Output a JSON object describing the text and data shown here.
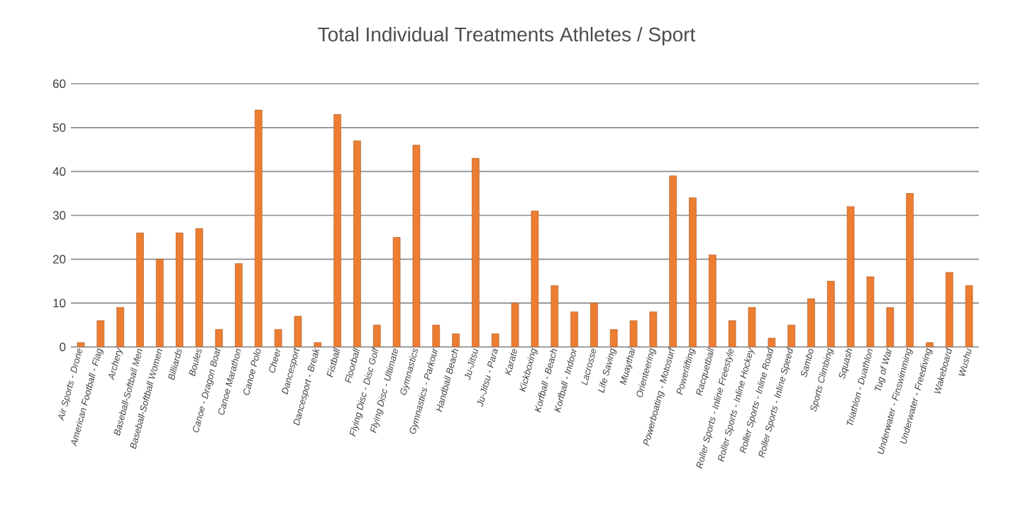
{
  "chart_data": {
    "type": "bar",
    "title": "Total Individual Treatments Athletes / Sport",
    "categories": [
      "Air Sports - Drone",
      "American Football - Flag",
      "Archery",
      "Baseball-Softball Men",
      "Baseball-Softball Women",
      "Billiards",
      "Boules",
      "Canoe - Dragon Boat",
      "Canoe Marathon",
      "Canoe Polo",
      "Cheer",
      "Dancesport",
      "Dancesport - Break",
      "Fistball",
      "Floorball",
      "Flying Disc - Disc Golf",
      "Flying Disc - Ultimate",
      "Gymnastics",
      "Gymnastics - Parkour",
      "Handball Beach",
      "Ju-Jitsu",
      "Ju-Jitsu - Para",
      "Karate",
      "Kickboxing",
      "Korfball - Beach",
      "Korfball - Indoor",
      "Lacrosse",
      "Life Saving",
      "Muaythai",
      "Orienteering",
      "Powerboating - Motosurf",
      "Powerlifting",
      "Racquetball",
      "Roller Sports - Inline Freestyle",
      "Roller Sports - Inline Hockey",
      "Roller Sports - Inline Road",
      "Roller Sports - Inline Speed",
      "Sambo",
      "Sports Climbing",
      "Squash",
      "Triathlon - Duathlon",
      "Tug of War",
      "Underwater - Finswimming",
      "Underwater - Freediving",
      "Wakeboard",
      "Wushu"
    ],
    "values": [
      1,
      6,
      9,
      26,
      20,
      26,
      27,
      4,
      19,
      54,
      4,
      7,
      1,
      53,
      47,
      5,
      25,
      46,
      5,
      3,
      43,
      3,
      10,
      31,
      14,
      8,
      10,
      4,
      6,
      8,
      39,
      34,
      21,
      6,
      9,
      2,
      5,
      11,
      15,
      32,
      16,
      9,
      35,
      1,
      17,
      14
    ],
    "color": "#ed7d31",
    "ylim": [
      0,
      60
    ],
    "yticks": [
      0,
      10,
      20,
      30,
      40,
      50,
      60
    ],
    "grid": "y"
  }
}
